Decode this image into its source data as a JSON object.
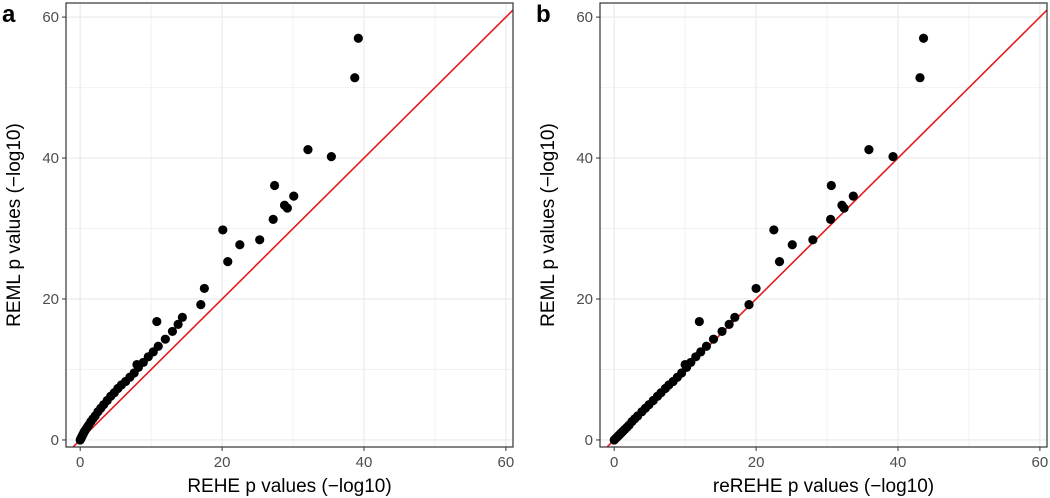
{
  "figure": {
    "panels": [
      {
        "label": "a",
        "xlabel": "REHE p values (−log10)",
        "ylabel": "REML p values (−log10)"
      },
      {
        "label": "b",
        "xlabel": "reREHE p values (−log10)",
        "ylabel": "REML p values (−log10)"
      }
    ]
  },
  "chart_data": [
    {
      "type": "scatter",
      "panel": "a",
      "xlabel": "REHE p values (−log10)",
      "ylabel": "REML p values (−log10)",
      "xlim": [
        -2,
        61
      ],
      "ylim": [
        -1,
        62
      ],
      "xticks": [
        0,
        20,
        40,
        60
      ],
      "yticks": [
        0,
        20,
        40,
        60
      ],
      "grid": true,
      "reference_line": {
        "slope": 1,
        "intercept": 0,
        "color": "#e41a1c"
      },
      "point_color": "#000000",
      "x": [
        0,
        0.1,
        0.2,
        0.3,
        0.4,
        0.5,
        0.6,
        0.8,
        1.0,
        1.2,
        1.5,
        1.8,
        2.1,
        2.5,
        2.9,
        3.3,
        3.8,
        4.3,
        4.8,
        5.3,
        5.8,
        6.4,
        7.0,
        7.6,
        8.2,
        8.9,
        9.6,
        10.3,
        11.0,
        12.0,
        13.0,
        13.8,
        14.4,
        10.8,
        8.0,
        17.0,
        17.5,
        20.1,
        20.8,
        22.5,
        25.3,
        27.2,
        27.4,
        28.8,
        29.2,
        30.1,
        32.1,
        35.4,
        38.7,
        39.2
      ],
      "y": [
        0,
        0.2,
        0.4,
        0.6,
        0.8,
        1.0,
        1.2,
        1.5,
        1.8,
        2.1,
        2.6,
        3.0,
        3.4,
        4.0,
        4.5,
        5.0,
        5.6,
        6.2,
        6.7,
        7.3,
        7.8,
        8.3,
        8.9,
        9.5,
        10.3,
        11.0,
        11.8,
        12.5,
        13.3,
        14.3,
        15.4,
        16.4,
        17.4,
        16.8,
        10.7,
        19.2,
        21.5,
        29.8,
        25.3,
        27.7,
        28.4,
        31.3,
        36.1,
        33.3,
        32.9,
        34.6,
        41.2,
        40.2,
        51.4,
        57.0
      ]
    },
    {
      "type": "scatter",
      "panel": "b",
      "xlabel": "reREHE p values (−log10)",
      "ylabel": "REML p values (−log10)",
      "xlim": [
        -2,
        61
      ],
      "ylim": [
        -1,
        62
      ],
      "xticks": [
        0,
        20,
        40,
        60
      ],
      "yticks": [
        0,
        20,
        40,
        60
      ],
      "grid": true,
      "reference_line": {
        "slope": 1,
        "intercept": 0,
        "color": "#e41a1c"
      },
      "point_color": "#000000",
      "x": [
        0,
        0.2,
        0.4,
        0.6,
        0.8,
        1.0,
        1.2,
        1.5,
        1.8,
        2.1,
        2.5,
        2.9,
        3.3,
        3.9,
        4.4,
        4.9,
        5.5,
        6.1,
        6.6,
        7.2,
        7.7,
        8.3,
        8.9,
        9.5,
        10.2,
        10.8,
        11.5,
        12.2,
        13.0,
        14.0,
        15.2,
        16.2,
        17.0,
        12.0,
        10.0,
        19.0,
        20.0,
        22.5,
        23.3,
        25.1,
        28.0,
        30.5,
        30.6,
        32.1,
        32.4,
        33.7,
        35.9,
        39.3,
        43.1,
        43.6
      ],
      "y": [
        0,
        0.2,
        0.4,
        0.6,
        0.8,
        1.0,
        1.2,
        1.5,
        1.8,
        2.1,
        2.6,
        3.0,
        3.4,
        4.0,
        4.5,
        5.0,
        5.6,
        6.2,
        6.7,
        7.3,
        7.8,
        8.3,
        8.9,
        9.5,
        10.3,
        11.0,
        11.8,
        12.5,
        13.3,
        14.3,
        15.4,
        16.4,
        17.4,
        16.8,
        10.7,
        19.2,
        21.5,
        29.8,
        25.3,
        27.7,
        28.4,
        31.3,
        36.1,
        33.3,
        32.9,
        34.6,
        41.2,
        40.2,
        51.4,
        57.0
      ]
    }
  ]
}
